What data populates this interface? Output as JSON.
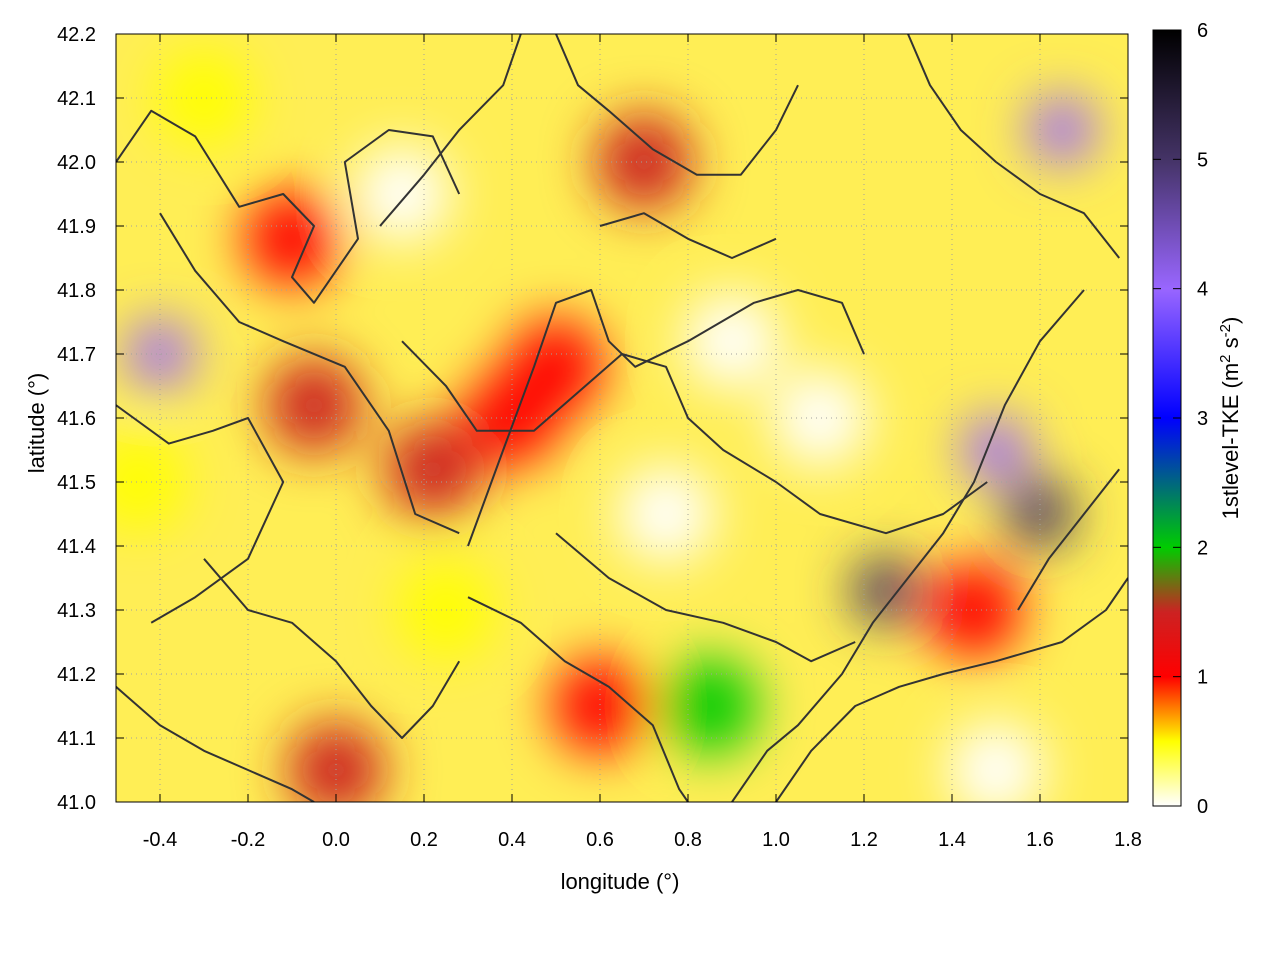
{
  "chart_data": {
    "type": "heatmap",
    "title": "",
    "xlabel": "longitude (°)",
    "ylabel": "latitude (°)",
    "xlim": [
      -0.5,
      1.8
    ],
    "ylim": [
      41.0,
      42.2
    ],
    "x_ticks": [
      "-0.4",
      "-0.2",
      "0.0",
      "0.2",
      "0.4",
      "0.6",
      "0.8",
      "1.0",
      "1.2",
      "1.4",
      "1.6",
      "1.8"
    ],
    "x_tick_values": [
      -0.4,
      -0.2,
      0.0,
      0.2,
      0.4,
      0.6,
      0.8,
      1.0,
      1.2,
      1.4,
      1.6,
      1.8
    ],
    "y_ticks": [
      "41.0",
      "41.1",
      "41.2",
      "41.3",
      "41.4",
      "41.5",
      "41.6",
      "41.7",
      "41.8",
      "41.9",
      "42.0",
      "42.1",
      "42.2"
    ],
    "y_tick_values": [
      41.0,
      41.1,
      41.2,
      41.3,
      41.4,
      41.5,
      41.6,
      41.7,
      41.8,
      41.9,
      42.0,
      42.1,
      42.2
    ],
    "grid": true,
    "colorbar": {
      "label_main": "1stlevel-TKE (m",
      "label_sup1": "2",
      "label_mid": " s",
      "label_sup2": "-2",
      "label_end": ")",
      "range": [
        0,
        6
      ],
      "ticks": [
        "0",
        "1",
        "2",
        "3",
        "4",
        "5",
        "6"
      ],
      "tick_values": [
        0,
        1,
        2,
        3,
        4,
        5,
        6
      ],
      "colorscale": [
        {
          "v": 0.0,
          "color": "#ffffff"
        },
        {
          "v": 0.5,
          "color": "#ffff00"
        },
        {
          "v": 1.0,
          "color": "#ff0000"
        },
        {
          "v": 1.5,
          "color": "#cc2222"
        },
        {
          "v": 2.0,
          "color": "#00cc00"
        },
        {
          "v": 3.0,
          "color": "#0000ff"
        },
        {
          "v": 4.0,
          "color": "#9966ff"
        },
        {
          "v": 5.0,
          "color": "#443366"
        },
        {
          "v": 6.0,
          "color": "#000000"
        }
      ]
    },
    "regions": [
      {
        "lon": 0.5,
        "lat": 41.68,
        "tke": 1.2
      },
      {
        "lon": 0.4,
        "lat": 41.6,
        "tke": 1.1
      },
      {
        "lon": -0.4,
        "lat": 41.7,
        "tke": 4.5
      },
      {
        "lon": -0.45,
        "lat": 41.5,
        "tke": 0.9
      },
      {
        "lon": -0.05,
        "lat": 41.62,
        "tke": 1.8
      },
      {
        "lon": 0.22,
        "lat": 41.52,
        "tke": 1.8
      },
      {
        "lon": -0.1,
        "lat": 41.88,
        "tke": 1.0
      },
      {
        "lon": 1.5,
        "lat": 41.55,
        "tke": 4.5
      },
      {
        "lon": 1.6,
        "lat": 41.45,
        "tke": 5.5
      },
      {
        "lon": 1.25,
        "lat": 41.33,
        "tke": 5.0
      },
      {
        "lon": 1.45,
        "lat": 41.3,
        "tke": 1.2
      },
      {
        "lon": 0.85,
        "lat": 41.15,
        "tke": 2.5
      },
      {
        "lon": 1.65,
        "lat": 42.05,
        "tke": 4.0
      },
      {
        "lon": 0.7,
        "lat": 42.0,
        "tke": 1.5
      },
      {
        "lon": 0.0,
        "lat": 41.05,
        "tke": 1.8
      },
      {
        "lon": 0.6,
        "lat": 41.15,
        "tke": 1.0
      },
      {
        "lon": 0.9,
        "lat": 41.72,
        "tke": 0.1
      },
      {
        "lon": 1.1,
        "lat": 41.6,
        "tke": 0.3
      },
      {
        "lon": 1.5,
        "lat": 41.05,
        "tke": 0.2
      },
      {
        "lon": 0.15,
        "lat": 41.95,
        "tke": 0.3
      },
      {
        "lon": -0.3,
        "lat": 42.1,
        "tke": 0.7
      },
      {
        "lon": 0.25,
        "lat": 41.3,
        "tke": 0.8
      },
      {
        "lon": 0.75,
        "lat": 41.45,
        "tke": 0.2
      }
    ],
    "contours": [
      [
        [
          -0.5,
          42.0
        ],
        [
          -0.42,
          42.08
        ],
        [
          -0.32,
          42.04
        ],
        [
          -0.22,
          41.93
        ],
        [
          -0.12,
          41.95
        ],
        [
          -0.05,
          41.9
        ],
        [
          -0.1,
          41.82
        ],
        [
          -0.05,
          41.78
        ],
        [
          0.05,
          41.88
        ],
        [
          0.02,
          42.0
        ],
        [
          0.12,
          42.05
        ],
        [
          0.22,
          42.04
        ],
        [
          0.28,
          41.95
        ]
      ],
      [
        [
          -0.4,
          41.92
        ],
        [
          -0.32,
          41.83
        ],
        [
          -0.22,
          41.75
        ],
        [
          -0.12,
          41.72
        ],
        [
          0.02,
          41.68
        ],
        [
          0.12,
          41.58
        ],
        [
          0.18,
          41.45
        ],
        [
          0.28,
          41.42
        ]
      ],
      [
        [
          -0.5,
          41.62
        ],
        [
          -0.38,
          41.56
        ],
        [
          -0.28,
          41.58
        ],
        [
          -0.2,
          41.6
        ],
        [
          -0.12,
          41.5
        ],
        [
          -0.2,
          41.38
        ],
        [
          -0.32,
          41.32
        ],
        [
          -0.42,
          41.28
        ]
      ],
      [
        [
          0.3,
          41.4
        ],
        [
          0.38,
          41.55
        ],
        [
          0.45,
          41.68
        ],
        [
          0.5,
          41.78
        ],
        [
          0.58,
          41.8
        ],
        [
          0.62,
          41.72
        ],
        [
          0.68,
          41.68
        ],
        [
          0.8,
          41.72
        ],
        [
          0.95,
          41.78
        ],
        [
          1.05,
          41.8
        ],
        [
          1.15,
          41.78
        ],
        [
          1.2,
          41.7
        ]
      ],
      [
        [
          0.15,
          41.72
        ],
        [
          0.25,
          41.65
        ],
        [
          0.32,
          41.58
        ],
        [
          0.45,
          41.58
        ],
        [
          0.55,
          41.64
        ],
        [
          0.65,
          41.7
        ],
        [
          0.75,
          41.68
        ],
        [
          0.8,
          41.6
        ],
        [
          0.88,
          41.55
        ],
        [
          1.0,
          41.5
        ],
        [
          1.1,
          41.45
        ],
        [
          1.25,
          41.42
        ],
        [
          1.38,
          41.45
        ],
        [
          1.48,
          41.5
        ]
      ],
      [
        [
          0.3,
          41.32
        ],
        [
          0.42,
          41.28
        ],
        [
          0.52,
          41.22
        ],
        [
          0.62,
          41.18
        ],
        [
          0.72,
          41.12
        ],
        [
          0.78,
          41.02
        ],
        [
          0.8,
          41.0
        ]
      ],
      [
        [
          0.5,
          41.42
        ],
        [
          0.62,
          41.35
        ],
        [
          0.75,
          41.3
        ],
        [
          0.88,
          41.28
        ],
        [
          1.0,
          41.25
        ],
        [
          1.08,
          41.22
        ],
        [
          1.18,
          41.25
        ]
      ],
      [
        [
          0.9,
          41.0
        ],
        [
          0.98,
          41.08
        ],
        [
          1.05,
          41.12
        ],
        [
          1.15,
          41.2
        ],
        [
          1.22,
          41.28
        ],
        [
          1.3,
          41.35
        ],
        [
          1.38,
          41.42
        ],
        [
          1.45,
          41.5
        ],
        [
          1.52,
          41.62
        ],
        [
          1.6,
          41.72
        ],
        [
          1.7,
          41.8
        ]
      ],
      [
        [
          1.0,
          41.0
        ],
        [
          1.08,
          41.08
        ],
        [
          1.18,
          41.15
        ],
        [
          1.28,
          41.18
        ],
        [
          1.38,
          41.2
        ],
        [
          1.5,
          41.22
        ],
        [
          1.65,
          41.25
        ],
        [
          1.75,
          41.3
        ],
        [
          1.8,
          41.35
        ]
      ],
      [
        [
          1.3,
          42.2
        ],
        [
          1.35,
          42.12
        ],
        [
          1.42,
          42.05
        ],
        [
          1.5,
          42.0
        ],
        [
          1.6,
          41.95
        ],
        [
          1.7,
          41.92
        ],
        [
          1.78,
          41.85
        ]
      ],
      [
        [
          0.5,
          42.2
        ],
        [
          0.55,
          42.12
        ],
        [
          0.62,
          42.08
        ],
        [
          0.72,
          42.02
        ],
        [
          0.82,
          41.98
        ],
        [
          0.92,
          41.98
        ],
        [
          1.0,
          42.05
        ],
        [
          1.05,
          42.12
        ]
      ],
      [
        [
          -0.3,
          41.38
        ],
        [
          -0.2,
          41.3
        ],
        [
          -0.1,
          41.28
        ],
        [
          0.0,
          41.22
        ],
        [
          0.08,
          41.15
        ],
        [
          0.15,
          41.1
        ],
        [
          0.22,
          41.15
        ],
        [
          0.28,
          41.22
        ]
      ],
      [
        [
          -0.5,
          41.18
        ],
        [
          -0.4,
          41.12
        ],
        [
          -0.3,
          41.08
        ],
        [
          -0.2,
          41.05
        ],
        [
          -0.1,
          41.02
        ],
        [
          -0.05,
          41.0
        ]
      ],
      [
        [
          0.1,
          41.9
        ],
        [
          0.2,
          41.98
        ],
        [
          0.28,
          42.05
        ],
        [
          0.38,
          42.12
        ],
        [
          0.42,
          42.2
        ]
      ],
      [
        [
          1.55,
          41.3
        ],
        [
          1.62,
          41.38
        ],
        [
          1.7,
          41.45
        ],
        [
          1.78,
          41.52
        ]
      ],
      [
        [
          0.6,
          41.9
        ],
        [
          0.7,
          41.92
        ],
        [
          0.8,
          41.88
        ],
        [
          0.9,
          41.85
        ],
        [
          1.0,
          41.88
        ]
      ]
    ]
  }
}
